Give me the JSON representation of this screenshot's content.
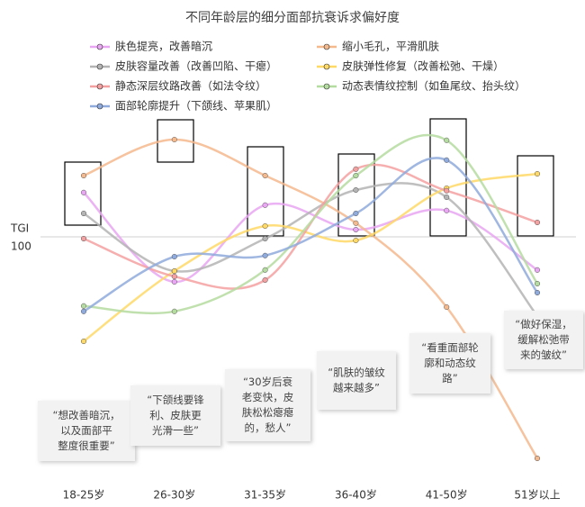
{
  "chart_data": {
    "type": "line",
    "title": "不同年龄层的细分面部抗衰诉求偏好度",
    "y_label": "TGI",
    "categories": [
      "18-25岁",
      "26-30岁",
      "31-35岁",
      "36-40岁",
      "41-50岁",
      "51岁以上"
    ],
    "ylim": [
      35,
      135
    ],
    "yticks": [
      100
    ],
    "series": [
      {
        "name": "肤色提亮，改善暗沉",
        "color": "#e9a6f2",
        "values": [
          112.3,
          87.5,
          108.8,
          102,
          107.3,
          90.8
        ]
      },
      {
        "name": "缩小毛孔，平滑肌肤",
        "color": "#f4b98d",
        "values": [
          117,
          127,
          117,
          103.8,
          80.5,
          38.5
        ]
      },
      {
        "name": "皮肤容量改善（改善凹陷、干瘪）",
        "color": "#b4b4b4",
        "values": [
          106.5,
          90.5,
          99.5,
          113,
          111,
          78
        ]
      },
      {
        "name": "皮肤弹性修复（改善松弛、干燥）",
        "color": "#ffd966",
        "values": [
          71,
          90.5,
          103,
          99,
          113.5,
          117.5
        ]
      },
      {
        "name": "静态深层纹路改善（如法令纹）",
        "color": "#f4a0a0",
        "values": [
          99.5,
          89,
          88,
          118.8,
          112.8,
          104
        ]
      },
      {
        "name": "动态表情纹控制（如鱼尾纹、抬头纹）",
        "color": "#b5dca0",
        "values": [
          80.8,
          79.3,
          90.8,
          117,
          126.8,
          87
        ]
      },
      {
        "name": "面部轮廓提升（下颌线、苹果肌）",
        "color": "#8faadc",
        "values": [
          79.3,
          94.5,
          94.8,
          106.5,
          121.3,
          84.5
        ]
      }
    ],
    "annotations": [
      [
        "“想改善暗沉，",
        "以及面部平",
        "整度很重要”"
      ],
      [
        "“下颌线要锋",
        "利、皮肤更",
        "光滑一些”"
      ],
      [
        "“30岁后衰",
        "老变快，皮",
        "肤松松瘪瘪",
        "的，愁人”"
      ],
      [
        "“肌肤的皱纹",
        "越来越多”"
      ],
      [
        "“看重面部轮",
        "廓和动态纹",
        "路”"
      ],
      [
        "“做好保湿，",
        "缓解松弛带",
        "来的皱纹”"
      ]
    ]
  }
}
